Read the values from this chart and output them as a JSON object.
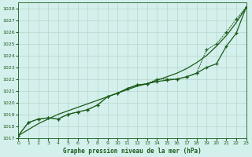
{
  "xlabel": "Graphe pression niveau de la mer (hPa)",
  "ylim": [
    1017,
    1028.5
  ],
  "xlim": [
    0,
    23
  ],
  "yticks": [
    1017,
    1018,
    1019,
    1020,
    1021,
    1022,
    1023,
    1024,
    1025,
    1026,
    1027,
    1028
  ],
  "xticks": [
    0,
    1,
    2,
    3,
    4,
    5,
    6,
    7,
    8,
    9,
    10,
    11,
    12,
    13,
    14,
    15,
    16,
    17,
    18,
    19,
    20,
    21,
    22,
    23
  ],
  "bg_color": "#d4f0ec",
  "grid_color": "#b8d4cc",
  "line_color": "#1a5c1a",
  "series1": [
    1017.2,
    1018.3,
    1018.6,
    1018.7,
    1018.6,
    1019.0,
    1019.2,
    1019.4,
    1019.8,
    1020.5,
    1020.8,
    1021.2,
    1021.5,
    1021.6,
    1022.0,
    1022.0,
    1022.0,
    1022.2,
    1022.5,
    1024.5,
    1025.0,
    1026.0,
    1027.1,
    1028.1
  ],
  "series2": [
    1017.2,
    1018.3,
    1018.6,
    1018.7,
    1018.6,
    1019.0,
    1019.2,
    1019.4,
    1019.8,
    1020.5,
    1020.8,
    1021.2,
    1021.5,
    1021.6,
    1021.8,
    1021.9,
    1022.0,
    1022.2,
    1022.5,
    1023.0,
    1023.3,
    1024.8,
    1025.9,
    1028.1
  ],
  "series3_smooth": [
    1017.2,
    1017.7,
    1018.2,
    1018.6,
    1019.0,
    1019.3,
    1019.6,
    1019.9,
    1020.2,
    1020.5,
    1020.8,
    1021.1,
    1021.4,
    1021.6,
    1021.9,
    1022.2,
    1022.5,
    1022.9,
    1023.4,
    1024.0,
    1024.8,
    1025.7,
    1026.8,
    1028.1
  ]
}
